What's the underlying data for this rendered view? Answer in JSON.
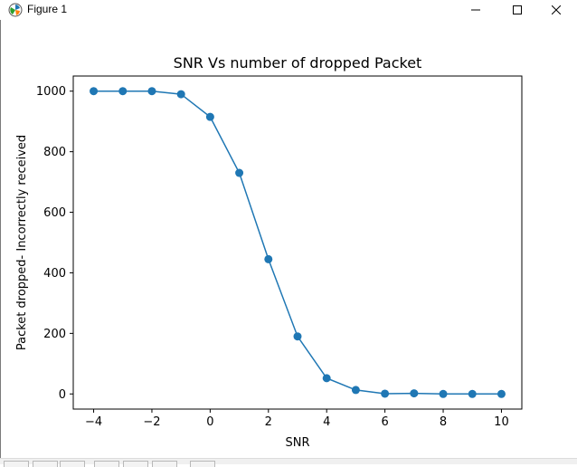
{
  "window": {
    "title": "Figure 1",
    "icon": "matplotlib-icon",
    "controls": {
      "minimize": "—",
      "maximize": "☐",
      "close": "✕"
    }
  },
  "toolbar": {
    "buttons": [
      "home-icon",
      "back-icon",
      "forward-icon",
      "pan-icon",
      "zoom-icon",
      "configure-icon",
      "save-icon"
    ]
  },
  "chart_data": {
    "type": "line",
    "title": "SNR Vs number of dropped Packet",
    "xlabel": "SNR",
    "ylabel": "Packet dropped- Incorrectly received",
    "x": [
      -4,
      -3,
      -2,
      -1,
      0,
      1,
      2,
      3,
      4,
      5,
      6,
      7,
      8,
      9,
      10
    ],
    "y": [
      1000,
      1000,
      1000,
      990,
      915,
      730,
      445,
      190,
      52,
      13,
      1,
      2,
      0,
      0,
      0
    ],
    "xlim": [
      -4.7,
      10.7
    ],
    "ylim": [
      -50,
      1050
    ],
    "xticks": [
      -4,
      -2,
      0,
      2,
      4,
      6,
      8,
      10
    ],
    "xtick_labels": [
      "−4",
      "−2",
      "0",
      "2",
      "4",
      "6",
      "8",
      "10"
    ],
    "yticks": [
      0,
      200,
      400,
      600,
      800,
      1000
    ],
    "ytick_labels": [
      "0",
      "200",
      "400",
      "600",
      "800",
      "1000"
    ],
    "grid": false,
    "marker": "circle",
    "color": "#1f77b4"
  }
}
